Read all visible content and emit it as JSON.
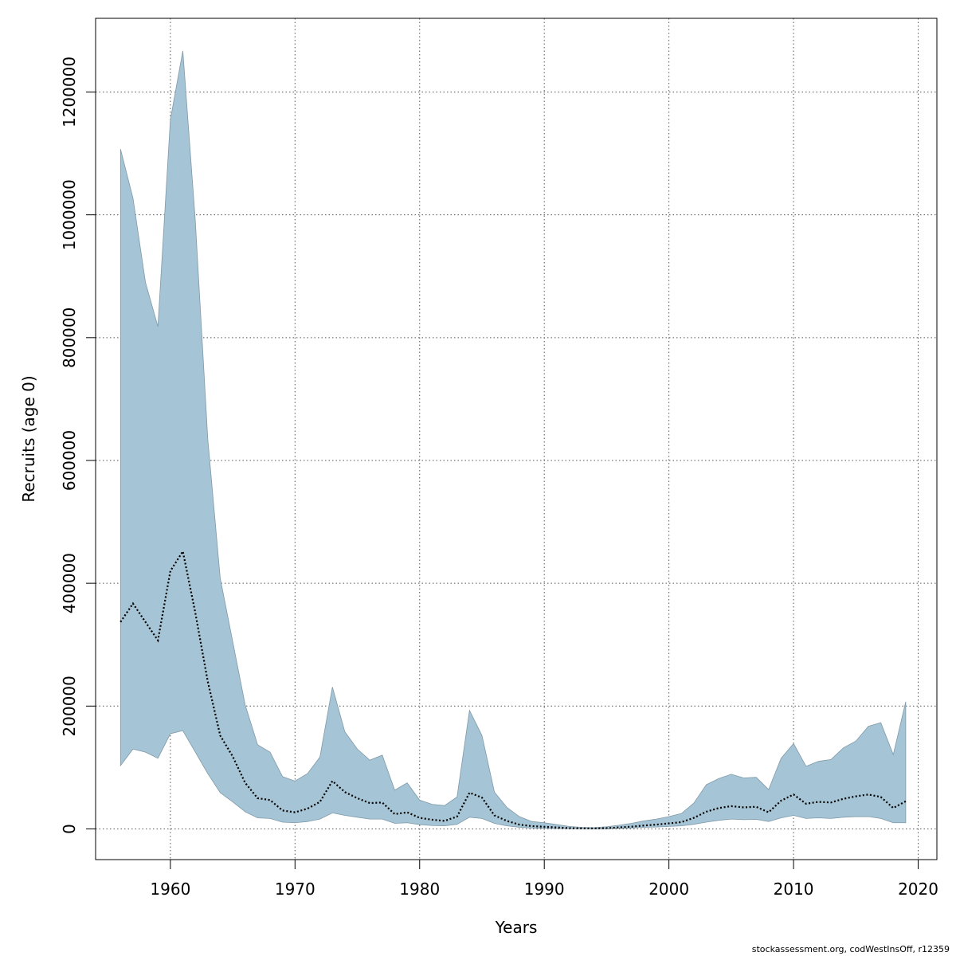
{
  "chart_data": {
    "type": "area",
    "title": "",
    "xlabel": "Years",
    "ylabel": "Recruits (age 0)",
    "xlim": [
      1954,
      2021.5
    ],
    "ylim": [
      -50000,
      1320000
    ],
    "x_ticks": [
      1960,
      1970,
      1980,
      1990,
      2000,
      2010,
      2020
    ],
    "y_ticks": [
      0,
      200000,
      400000,
      600000,
      800000,
      1000000,
      1200000
    ],
    "grid": true,
    "colors": {
      "band_fill": "#A5C4D5",
      "band_edge": "#7f9aa8",
      "line": "#000000",
      "grid": "#555555"
    },
    "series": [
      {
        "name": "upper",
        "x": [
          1956,
          1957,
          1958,
          1959,
          1960,
          1961,
          1962,
          1963,
          1964,
          1965,
          1966,
          1967,
          1968,
          1969,
          1970,
          1971,
          1972,
          1973,
          1974,
          1975,
          1976,
          1977,
          1978,
          1979,
          1980,
          1981,
          1982,
          1983,
          1984,
          1985,
          1986,
          1987,
          1988,
          1989,
          1990,
          1991,
          1992,
          1993,
          1994,
          1995,
          1996,
          1997,
          1998,
          1999,
          2000,
          2001,
          2002,
          2003,
          2004,
          2005,
          2006,
          2007,
          2008,
          2009,
          2010,
          2011,
          2012,
          2013,
          2014,
          2015,
          2016,
          2017,
          2018,
          2019
        ],
        "values": [
          1107000,
          1027000,
          890000,
          818000,
          1155000,
          1267000,
          990000,
          635000,
          408000,
          305000,
          202000,
          137000,
          125000,
          85000,
          78000,
          90000,
          117000,
          231000,
          158000,
          130000,
          112000,
          120000,
          63000,
          75000,
          47000,
          40000,
          38000,
          52000,
          193000,
          152000,
          60000,
          35000,
          20000,
          12000,
          10000,
          7000,
          4000,
          2500,
          2000,
          3500,
          6000,
          9000,
          13000,
          16000,
          20000,
          25000,
          42000,
          72000,
          82000,
          89000,
          83000,
          84000,
          64000,
          115000,
          139000,
          102000,
          110000,
          113000,
          132000,
          143000,
          167000,
          173000,
          121000,
          207000
        ]
      },
      {
        "name": "lower",
        "x": [
          1956,
          1957,
          1958,
          1959,
          1960,
          1961,
          1962,
          1963,
          1964,
          1965,
          1966,
          1967,
          1968,
          1969,
          1970,
          1971,
          1972,
          1973,
          1974,
          1975,
          1976,
          1977,
          1978,
          1979,
          1980,
          1981,
          1982,
          1983,
          1984,
          1985,
          1986,
          1987,
          1988,
          1989,
          1990,
          1991,
          1992,
          1993,
          1994,
          1995,
          1996,
          1997,
          1998,
          1999,
          2000,
          2001,
          2002,
          2003,
          2004,
          2005,
          2006,
          2007,
          2008,
          2009,
          2010,
          2011,
          2012,
          2013,
          2014,
          2015,
          2016,
          2017,
          2018,
          2019
        ],
        "values": [
          103000,
          130000,
          125000,
          115000,
          155000,
          160000,
          125000,
          90000,
          59000,
          44000,
          28000,
          18000,
          17000,
          11000,
          10000,
          12000,
          16000,
          26000,
          22000,
          19000,
          16000,
          16000,
          9000,
          10000,
          7000,
          5500,
          5000,
          7500,
          19000,
          17000,
          9000,
          5000,
          2500,
          1500,
          1000,
          700,
          400,
          300,
          300,
          500,
          1000,
          1500,
          2500,
          3000,
          4000,
          5000,
          7500,
          11000,
          14000,
          16000,
          15000,
          15500,
          12000,
          18000,
          22000,
          17000,
          18000,
          17000,
          19000,
          20000,
          20000,
          17000,
          10000,
          10000
        ]
      },
      {
        "name": "estimate",
        "x": [
          1956,
          1957,
          1958,
          1959,
          1960,
          1961,
          1962,
          1963,
          1964,
          1965,
          1966,
          1967,
          1968,
          1969,
          1970,
          1971,
          1972,
          1973,
          1974,
          1975,
          1976,
          1977,
          1978,
          1979,
          1980,
          1981,
          1982,
          1983,
          1984,
          1985,
          1986,
          1987,
          1988,
          1989,
          1990,
          1991,
          1992,
          1993,
          1994,
          1995,
          1996,
          1997,
          1998,
          1999,
          2000,
          2001,
          2002,
          2003,
          2004,
          2005,
          2006,
          2007,
          2008,
          2009,
          2010,
          2011,
          2012,
          2013,
          2014,
          2015,
          2016,
          2017,
          2018,
          2019
        ],
        "values": [
          337000,
          367000,
          337000,
          307000,
          420000,
          452000,
          352000,
          240000,
          152000,
          118000,
          75000,
          50000,
          47000,
          30000,
          27000,
          33000,
          44000,
          78000,
          60000,
          50000,
          42000,
          43000,
          24000,
          27000,
          18000,
          15000,
          13000,
          20000,
          59000,
          51000,
          22000,
          13000,
          7000,
          4500,
          3500,
          2300,
          1300,
          900,
          800,
          1200,
          2400,
          3600,
          5500,
          7000,
          9000,
          11000,
          18000,
          28000,
          34000,
          37000,
          35000,
          36000,
          27000,
          46000,
          56000,
          41000,
          44000,
          43000,
          49000,
          53000,
          56000,
          52000,
          34000,
          45000
        ]
      }
    ]
  },
  "footer": {
    "text": "stockassessment.org, codWestInsOff, r12359"
  }
}
